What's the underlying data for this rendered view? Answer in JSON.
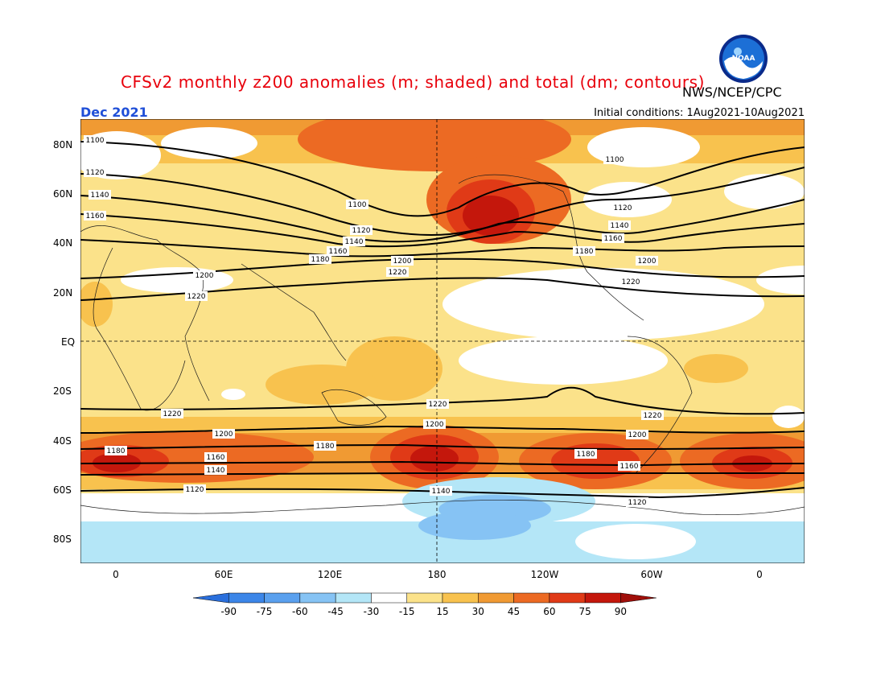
{
  "title": "CFSv2 monthly z200 anomalies (m; shaded) and total (dm; contours)",
  "agency": "NWS/NCEP/CPC",
  "logo_text": "NOAA",
  "month_label": "Dec 2021",
  "initial_conditions": "Initial conditions: 1Aug2021-10Aug2021",
  "lat_labels": [
    "80N",
    "60N",
    "40N",
    "20N",
    "EQ",
    "20S",
    "40S",
    "60S",
    "80S"
  ],
  "lon_labels": [
    "0",
    "60E",
    "120E",
    "180",
    "120W",
    "60W",
    "0"
  ],
  "colorbar": {
    "ticks": [
      "-90",
      "-75",
      "-60",
      "-45",
      "-30",
      "-15",
      "15",
      "30",
      "45",
      "60",
      "75",
      "90"
    ],
    "colors": [
      "#2a6fdc",
      "#3c86e8",
      "#5aa0ee",
      "#86c3f4",
      "#b4e6f7",
      "#ffffff",
      "#fbe28a",
      "#f8c24e",
      "#f09a33",
      "#ec6a23",
      "#e03a17",
      "#c4170c",
      "#a00f0a"
    ]
  },
  "contour_labels": [
    "1100",
    "1120",
    "1140",
    "1160",
    "1180",
    "1200",
    "1220"
  ],
  "colors": {
    "title": "#e8000b",
    "month": "#1f4fd8"
  }
}
